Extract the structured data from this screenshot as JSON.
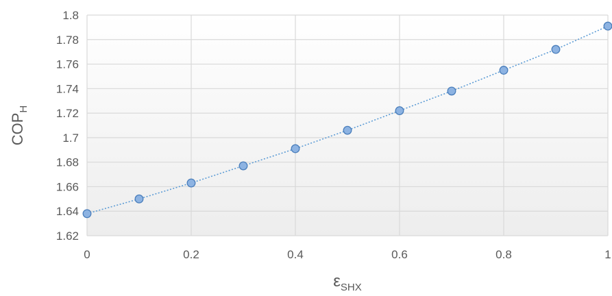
{
  "chart_data": {
    "type": "scatter",
    "title": "",
    "xlabel": {
      "main": "ε",
      "sub": "SHX"
    },
    "ylabel": {
      "main": "COP",
      "sub": "H"
    },
    "xlim": [
      0,
      1
    ],
    "ylim": [
      1.62,
      1.8
    ],
    "x_ticks": [
      "0",
      "0.2",
      "0.4",
      "0.6",
      "0.8",
      "1"
    ],
    "y_ticks": [
      "1.62",
      "1.64",
      "1.66",
      "1.68",
      "1.7",
      "1.72",
      "1.74",
      "1.76",
      "1.78",
      "1.8"
    ],
    "grid": true,
    "legend": "none",
    "trendline": "dotted",
    "series": [
      {
        "x": [
          0,
          0.1,
          0.2,
          0.3,
          0.4,
          0.5,
          0.6,
          0.7,
          0.8,
          0.9,
          1.0
        ],
        "y": [
          1.638,
          1.65,
          1.663,
          1.677,
          1.691,
          1.706,
          1.722,
          1.738,
          1.755,
          1.772,
          1.791
        ]
      }
    ],
    "colors": {
      "marker_fill": "#8db3e2",
      "marker_stroke": "#4a7ebb",
      "trendline": "#5b9bd5",
      "grid": "#d9d9d9",
      "text": "#595959",
      "plot_bg_top": "#ffffff",
      "plot_bg_bottom": "#ededed"
    }
  }
}
